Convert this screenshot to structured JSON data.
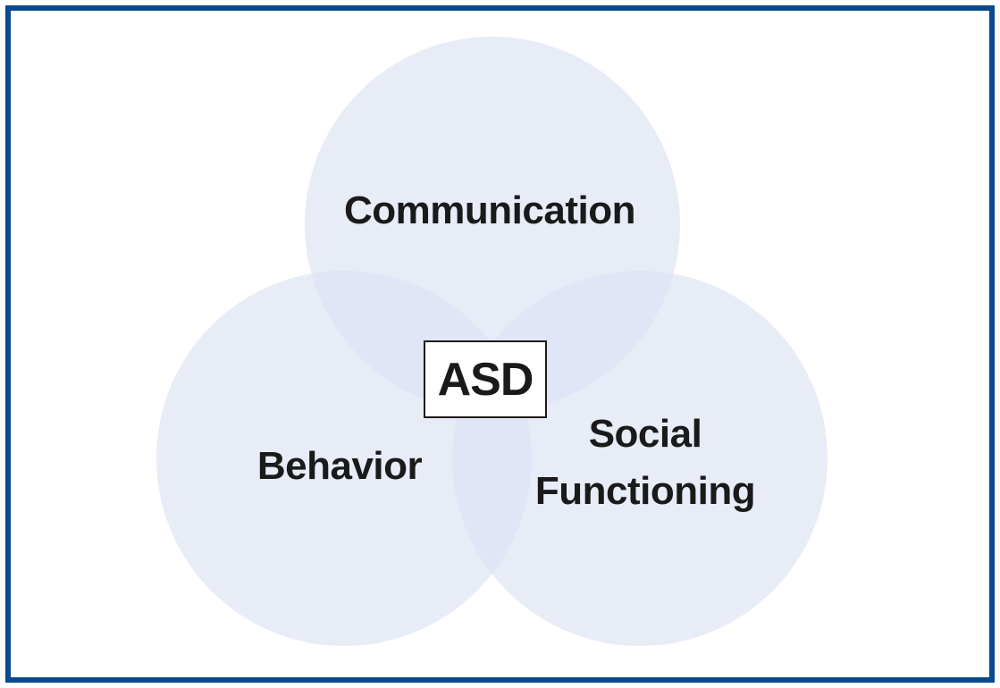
{
  "diagram": {
    "type": "venn",
    "colors": {
      "border": "#0a4a8f",
      "circle_fill": "#dde4f4",
      "text": "#1a1a1a"
    },
    "circles": [
      {
        "id": "communication",
        "label": "Communication"
      },
      {
        "id": "behavior",
        "label": "Behavior"
      },
      {
        "id": "social",
        "label_line1": "Social",
        "label_line2": "Functioning"
      }
    ],
    "center": {
      "label": "ASD"
    }
  }
}
